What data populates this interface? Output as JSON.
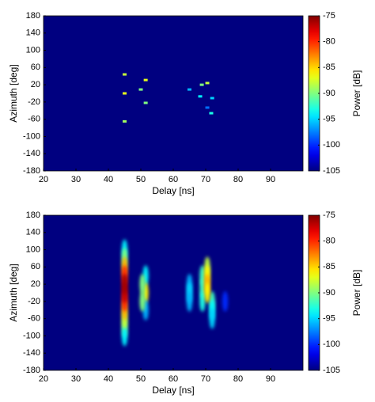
{
  "chart_data": [
    {
      "type": "heatmap",
      "xlabel": "Delay [ns]",
      "ylabel": "Azimuth [deg]",
      "colorbar_label": "Power [dB]",
      "xlim": [
        20,
        100
      ],
      "xticks": [
        20,
        30,
        40,
        50,
        60,
        70,
        80,
        90
      ],
      "ylim": [
        -180,
        180
      ],
      "yticks": [
        -180,
        -140,
        -100,
        -60,
        -20,
        20,
        60,
        100,
        140,
        180
      ],
      "clim": [
        -105,
        -75
      ],
      "cticks": [
        -75,
        -80,
        -85,
        -90,
        -95,
        -100,
        -105
      ],
      "x": [
        45,
        45,
        45,
        51.5,
        50,
        51.5,
        65,
        68.8,
        70.5,
        68.3,
        72,
        70.5,
        71.7
      ],
      "y": [
        44,
        0,
        -65,
        31,
        9,
        -22,
        9,
        20,
        24,
        -7,
        -11,
        -33,
        -46
      ],
      "values": [
        -88,
        -87,
        -89,
        -87,
        -90,
        -90,
        -96,
        -90,
        -88,
        -94,
        -95,
        -98,
        -93
      ]
    },
    {
      "type": "heatmap",
      "xlabel": "Delay [ns]",
      "ylabel": "Azimuth [deg]",
      "colorbar_label": "Power [dB]",
      "xlim": [
        20,
        100
      ],
      "xticks": [
        20,
        30,
        40,
        50,
        60,
        70,
        80,
        90
      ],
      "ylim": [
        -180,
        180
      ],
      "yticks": [
        -180,
        -140,
        -100,
        -60,
        -20,
        20,
        60,
        100,
        140,
        180
      ],
      "clim": [
        -105,
        -75
      ],
      "cticks": [
        -75,
        -80,
        -85,
        -90,
        -95,
        -100,
        -105
      ],
      "x": [
        45,
        45,
        45,
        45,
        45,
        51.5,
        51.5,
        51.5,
        50.5,
        50.5,
        65,
        65,
        65,
        69,
        69,
        69,
        72,
        72,
        72,
        76,
        70.5,
        70.5,
        70.5,
        70.5,
        45,
        45,
        45,
        45,
        45,
        45
      ],
      "y": [
        100,
        80,
        -80,
        -100,
        -60,
        40,
        0,
        -40,
        20,
        -20,
        20,
        0,
        -20,
        40,
        10,
        -20,
        -20,
        -40,
        -60,
        -20,
        60,
        40,
        20,
        0,
        60,
        -40,
        40,
        -20,
        0,
        20
      ],
      "values": [
        -94,
        -90,
        -90,
        -94,
        -88,
        -94,
        -86,
        -96,
        -90,
        -90,
        -96,
        -95,
        -96,
        -92,
        -92,
        -93,
        -92,
        -94,
        -95,
        -100,
        -88,
        -86,
        -84,
        -86,
        -84,
        -84,
        -80,
        -80,
        -77,
        -76
      ]
    }
  ]
}
